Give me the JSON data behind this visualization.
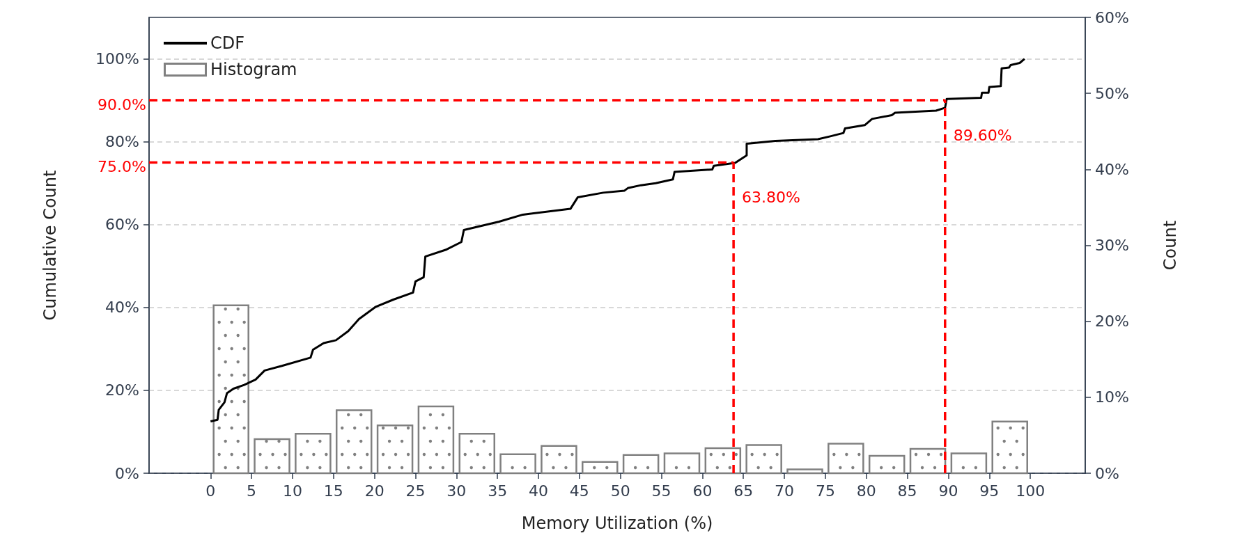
{
  "chart_data": {
    "type": "line",
    "xlabel": "Memory Utilization (%)",
    "ylabel": "Cumulative Count",
    "y2label": "Count",
    "xlim": [
      -7.5,
      106.7
    ],
    "xticks": [
      0,
      5,
      10,
      15,
      20,
      25,
      30,
      35,
      40,
      45,
      50,
      55,
      60,
      65,
      70,
      75,
      80,
      85,
      90,
      95,
      100
    ],
    "ylim": [
      0,
      110
    ],
    "yticks": [
      {
        "value": 0,
        "label": "0%"
      },
      {
        "value": 20,
        "label": "20%"
      },
      {
        "value": 40,
        "label": "40%"
      },
      {
        "value": 60,
        "label": "60%"
      },
      {
        "value": 80,
        "label": "80%"
      },
      {
        "value": 100,
        "label": "100%"
      }
    ],
    "y2lim": [
      0,
      60
    ],
    "y2ticks": [
      {
        "value": 0,
        "label": "0%"
      },
      {
        "value": 10,
        "label": "10%"
      },
      {
        "value": 20,
        "label": "20%"
      },
      {
        "value": 30,
        "label": "30%"
      },
      {
        "value": 40,
        "label": "40%"
      },
      {
        "value": 50,
        "label": "50%"
      },
      {
        "value": 60,
        "label": "60%"
      }
    ],
    "grid": "y",
    "legend": "top left",
    "series": [
      {
        "name": "CDF",
        "type": "line",
        "color": "#000000",
        "x": [
          0.0,
          0.85,
          1.0,
          1.7,
          2.0,
          2.8,
          4.1,
          5.5,
          6.6,
          8.7,
          12.2,
          12.5,
          13.8,
          15.3,
          16.8,
          18.1,
          20.1,
          22.3,
          24.7,
          25.0,
          26.0,
          26.2,
          28.8,
          30.6,
          30.9,
          35.2,
          38.1,
          43.9,
          44.8,
          47.9,
          50.5,
          50.9,
          52.5,
          54.3,
          56.4,
          56.6,
          61.2,
          61.4,
          64.0,
          65.4,
          65.4,
          68.9,
          74.1,
          75.6,
          77.2,
          77.4,
          79.8,
          80.7,
          83.1,
          83.5,
          88.5,
          89.6,
          89.8,
          94.0,
          94.1,
          94.9,
          95.0,
          96.4,
          96.5,
          97.4,
          97.6,
          98.7,
          99.3
        ],
        "values": [
          12.5,
          12.9,
          15.3,
          17.1,
          19.3,
          20.4,
          21.3,
          22.6,
          24.8,
          25.9,
          27.9,
          29.8,
          31.4,
          32.1,
          34.3,
          37.2,
          40.1,
          41.9,
          43.6,
          46.3,
          47.3,
          52.3,
          54.0,
          55.8,
          58.7,
          60.7,
          62.4,
          63.8,
          66.6,
          67.7,
          68.2,
          68.8,
          69.5,
          70.0,
          70.9,
          72.7,
          73.3,
          74.2,
          74.9,
          76.7,
          79.5,
          80.2,
          80.6,
          81.3,
          82.1,
          83.2,
          84.0,
          85.5,
          86.4,
          87.0,
          87.5,
          88.2,
          90.3,
          90.6,
          91.8,
          91.8,
          93.2,
          93.4,
          97.7,
          97.9,
          98.5,
          99.0,
          100
        ]
      },
      {
        "name": "Histogram",
        "type": "histogram",
        "axis": "y2",
        "color": "#808080",
        "bins": [
          0,
          5,
          10,
          15,
          20,
          25,
          30,
          35,
          40,
          45,
          50,
          55,
          60,
          65,
          70,
          75,
          80,
          85,
          90,
          95,
          100
        ],
        "values": [
          22.1,
          4.5,
          5.2,
          8.3,
          6.3,
          8.8,
          5.2,
          2.5,
          3.6,
          1.5,
          2.4,
          2.6,
          3.3,
          3.7,
          0.5,
          3.9,
          2.3,
          3.2,
          2.6,
          6.8
        ]
      }
    ],
    "ref_lines": [
      {
        "axis": "y",
        "value": 75,
        "label": "75.0%",
        "color": "#ff0000",
        "line_style": "dashed"
      },
      {
        "axis": "x",
        "value": 63.8,
        "label": "63.80%",
        "color": "#ff0000",
        "line_style": "dashed"
      },
      {
        "axis": "y",
        "value": 90,
        "label": "90.0%",
        "color": "#ff0000",
        "line_style": "dashed"
      },
      {
        "axis": "x",
        "value": 89.6,
        "label": "89.60%",
        "color": "#ff0000",
        "line_style": "dashed"
      }
    ]
  }
}
